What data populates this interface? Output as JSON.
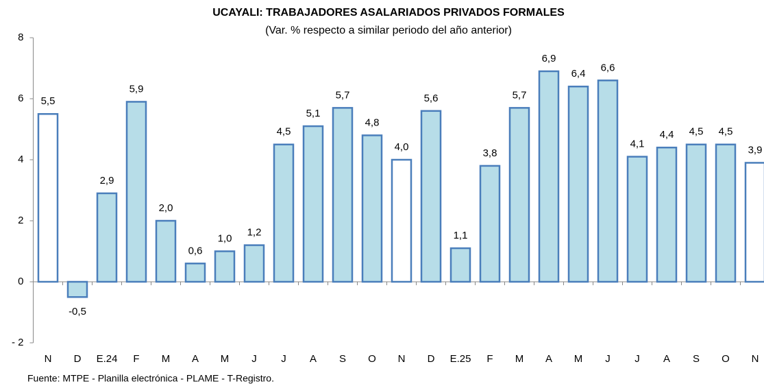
{
  "chart_data": {
    "type": "bar",
    "title": "UCAYALI: TRABAJADORES ASALARIADOS PRIVADOS FORMALES",
    "subtitle": "(Var. % respecto a similar periodo del año anterior)",
    "source": "Fuente: MTPE - Planilla electrónica - PLAME - T-Registro.",
    "categories": [
      "N",
      "D",
      "E.24",
      "F",
      "M",
      "A",
      "M",
      "J",
      "J",
      "A",
      "S",
      "O",
      "N",
      "D",
      "E.25",
      "F",
      "M",
      "A",
      "M",
      "J",
      "J",
      "A",
      "S",
      "O",
      "N"
    ],
    "values": [
      5.5,
      -0.5,
      2.9,
      5.9,
      2.0,
      0.6,
      1.0,
      1.2,
      4.5,
      5.1,
      5.7,
      4.8,
      4.0,
      5.6,
      1.1,
      3.8,
      5.7,
      6.9,
      6.4,
      6.6,
      4.1,
      4.4,
      4.5,
      4.5,
      3.9
    ],
    "value_labels": [
      "5,5",
      "-0,5",
      "2,9",
      "5,9",
      "2,0",
      "0,6",
      "1,0",
      "1,2",
      "4,5",
      "5,1",
      "5,7",
      "4,8",
      "4,0",
      "5,6",
      "1,1",
      "3,8",
      "5,7",
      "6,9",
      "6,4",
      "6,6",
      "4,1",
      "4,4",
      "4,5",
      "4,5",
      "3,9"
    ],
    "colors": [
      "#ffffff",
      "#b7dde8",
      "#b7dde8",
      "#b7dde8",
      "#b7dde8",
      "#b7dde8",
      "#b7dde8",
      "#b7dde8",
      "#b7dde8",
      "#b7dde8",
      "#b7dde8",
      "#b7dde8",
      "#ffffff",
      "#b7dde8",
      "#b7dde8",
      "#b7dde8",
      "#b7dde8",
      "#b7dde8",
      "#b7dde8",
      "#b7dde8",
      "#b7dde8",
      "#b7dde8",
      "#b7dde8",
      "#b7dde8",
      "#ffffff"
    ],
    "edge_color": "#4a7ebb",
    "ylim": [
      -2,
      8
    ],
    "yticks": [
      {
        "value": -2,
        "label": "- 2"
      },
      0,
      2,
      4,
      6,
      8
    ],
    "grid": false
  }
}
